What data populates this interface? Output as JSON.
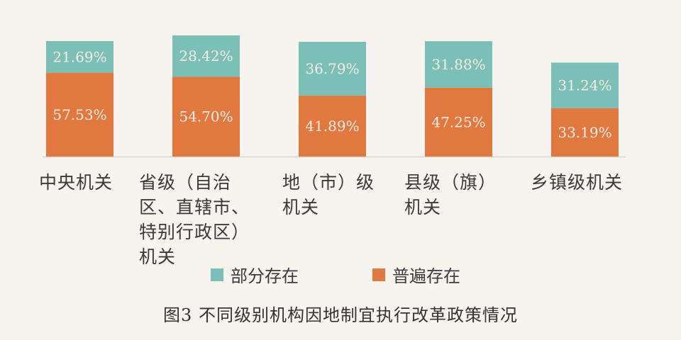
{
  "chart_data": {
    "type": "bar",
    "stacked": true,
    "categories": [
      "中央机关",
      "省级（自治区、直辖市、特别行政区）机关",
      "地（市）级机关",
      "县级（旗）机关",
      "乡镇级机关"
    ],
    "series": [
      {
        "name": "普遍存在",
        "values": [
          57.53,
          54.7,
          41.89,
          47.25,
          33.19
        ],
        "labels": [
          "57.53%",
          "54.70%",
          "41.89%",
          "47.25%",
          "33.19%"
        ],
        "color": "#e07840"
      },
      {
        "name": "部分存在",
        "values": [
          21.69,
          28.42,
          36.79,
          31.88,
          31.24
        ],
        "labels": [
          "21.69%",
          "28.42%",
          "36.79%",
          "31.88%",
          "31.24%"
        ],
        "color": "#7bbfb6"
      }
    ],
    "title": "图3  不同级别机构因地制宜执行改革政策情况",
    "xlabel": "",
    "ylabel": "",
    "unit": "%",
    "grid": false,
    "legend_position": "bottom"
  },
  "legend": [
    "部分存在",
    "普遍存在"
  ]
}
